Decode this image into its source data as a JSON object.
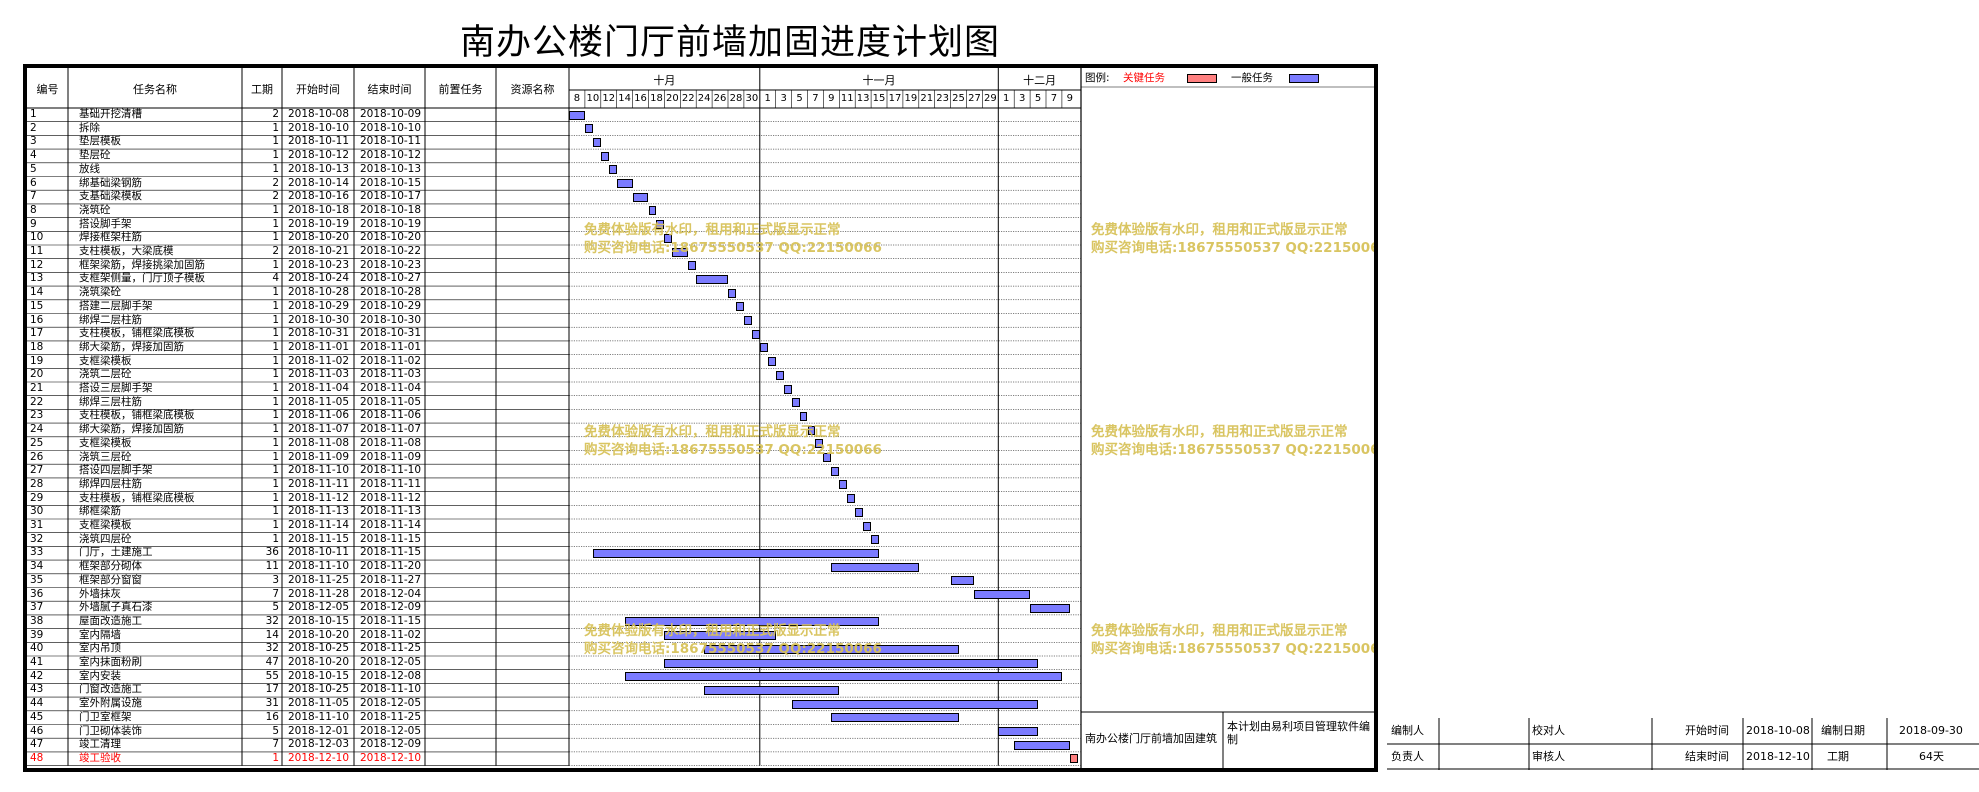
{
  "title": "南办公楼门厅前墙加固进度计划图",
  "columns": {
    "id": "编号",
    "name": "任务名称",
    "dur": "工期",
    "start": "开始时间",
    "end": "结束时间",
    "pred": "前置任务",
    "res": "资源名称"
  },
  "months": [
    "十月",
    "十一月",
    "十二月"
  ],
  "days": [
    "8",
    "10",
    "12",
    "14",
    "16",
    "18",
    "20",
    "22",
    "24",
    "26",
    "28",
    "30",
    "1",
    "3",
    "5",
    "7",
    "9",
    "11",
    "13",
    "15",
    "17",
    "19",
    "21",
    "23",
    "25",
    "27",
    "29",
    "1",
    "3",
    "5",
    "7",
    "9"
  ],
  "legend": {
    "label": "图例:",
    "critical": "关键任务",
    "normal": "一般任务"
  },
  "colors": {
    "critical": "#ff8080",
    "normal": "#7b7bff",
    "watermark": "#d8c25a",
    "critical_text": "#ff0000"
  },
  "tasks": [
    {
      "id": "1",
      "name": "基础开挖清槽",
      "dur": "2",
      "start": "2018-10-08",
      "end": "2018-10-09"
    },
    {
      "id": "2",
      "name": "拆除",
      "dur": "1",
      "start": "2018-10-10",
      "end": "2018-10-10"
    },
    {
      "id": "3",
      "name": "垫层模板",
      "dur": "1",
      "start": "2018-10-11",
      "end": "2018-10-11"
    },
    {
      "id": "4",
      "name": "垫层砼",
      "dur": "1",
      "start": "2018-10-12",
      "end": "2018-10-12"
    },
    {
      "id": "5",
      "name": "放线",
      "dur": "1",
      "start": "2018-10-13",
      "end": "2018-10-13"
    },
    {
      "id": "6",
      "name": "绑基础梁钢筋",
      "dur": "2",
      "start": "2018-10-14",
      "end": "2018-10-15"
    },
    {
      "id": "7",
      "name": "支基础梁模板",
      "dur": "2",
      "start": "2018-10-16",
      "end": "2018-10-17"
    },
    {
      "id": "8",
      "name": "浇筑砼",
      "dur": "1",
      "start": "2018-10-18",
      "end": "2018-10-18"
    },
    {
      "id": "9",
      "name": "搭设脚手架",
      "dur": "1",
      "start": "2018-10-19",
      "end": "2018-10-19"
    },
    {
      "id": "10",
      "name": "焊接框架柱筋",
      "dur": "1",
      "start": "2018-10-20",
      "end": "2018-10-20"
    },
    {
      "id": "11",
      "name": "支柱模板，大梁底模",
      "dur": "2",
      "start": "2018-10-21",
      "end": "2018-10-22"
    },
    {
      "id": "12",
      "name": "框架梁筋，焊接挑梁加固筋",
      "dur": "1",
      "start": "2018-10-23",
      "end": "2018-10-23"
    },
    {
      "id": "13",
      "name": "支框架侧量，门厅顶子模板",
      "dur": "4",
      "start": "2018-10-24",
      "end": "2018-10-27"
    },
    {
      "id": "14",
      "name": "浇筑梁砼",
      "dur": "1",
      "start": "2018-10-28",
      "end": "2018-10-28"
    },
    {
      "id": "15",
      "name": "搭建二层脚手架",
      "dur": "1",
      "start": "2018-10-29",
      "end": "2018-10-29"
    },
    {
      "id": "16",
      "name": "绑焊二层柱筋",
      "dur": "1",
      "start": "2018-10-30",
      "end": "2018-10-30"
    },
    {
      "id": "17",
      "name": "支柱模板，铺框梁底模板",
      "dur": "1",
      "start": "2018-10-31",
      "end": "2018-10-31"
    },
    {
      "id": "18",
      "name": "绑大梁筋，焊接加固筋",
      "dur": "1",
      "start": "2018-11-01",
      "end": "2018-11-01"
    },
    {
      "id": "19",
      "name": "支框梁模板",
      "dur": "1",
      "start": "2018-11-02",
      "end": "2018-11-02"
    },
    {
      "id": "20",
      "name": "浇筑二层砼",
      "dur": "1",
      "start": "2018-11-03",
      "end": "2018-11-03"
    },
    {
      "id": "21",
      "name": "搭设三层脚手架",
      "dur": "1",
      "start": "2018-11-04",
      "end": "2018-11-04"
    },
    {
      "id": "22",
      "name": "绑焊三层柱筋",
      "dur": "1",
      "start": "2018-11-05",
      "end": "2018-11-05"
    },
    {
      "id": "23",
      "name": "支柱模板，铺框梁底模板",
      "dur": "1",
      "start": "2018-11-06",
      "end": "2018-11-06"
    },
    {
      "id": "24",
      "name": "绑大梁筋，焊接加固筋",
      "dur": "1",
      "start": "2018-11-07",
      "end": "2018-11-07"
    },
    {
      "id": "25",
      "name": "支框梁模板",
      "dur": "1",
      "start": "2018-11-08",
      "end": "2018-11-08"
    },
    {
      "id": "26",
      "name": "浇筑三层砼",
      "dur": "1",
      "start": "2018-11-09",
      "end": "2018-11-09"
    },
    {
      "id": "27",
      "name": "搭设四层脚手架",
      "dur": "1",
      "start": "2018-11-10",
      "end": "2018-11-10"
    },
    {
      "id": "28",
      "name": "绑焊四层柱筋",
      "dur": "1",
      "start": "2018-11-11",
      "end": "2018-11-11"
    },
    {
      "id": "29",
      "name": "支柱模板，铺框梁底模板",
      "dur": "1",
      "start": "2018-11-12",
      "end": "2018-11-12"
    },
    {
      "id": "30",
      "name": "绑框梁筋",
      "dur": "1",
      "start": "2018-11-13",
      "end": "2018-11-13"
    },
    {
      "id": "31",
      "name": "支框梁模板",
      "dur": "1",
      "start": "2018-11-14",
      "end": "2018-11-14"
    },
    {
      "id": "32",
      "name": "浇筑四层砼",
      "dur": "1",
      "start": "2018-11-15",
      "end": "2018-11-15"
    },
    {
      "id": "33",
      "name": "门厅，土建施工",
      "dur": "36",
      "start": "2018-10-11",
      "end": "2018-11-15"
    },
    {
      "id": "34",
      "name": "框架部分砌体",
      "dur": "11",
      "start": "2018-11-10",
      "end": "2018-11-20"
    },
    {
      "id": "35",
      "name": "框架部分窗窗",
      "dur": "3",
      "start": "2018-11-25",
      "end": "2018-11-27"
    },
    {
      "id": "36",
      "name": "外墙抹灰",
      "dur": "7",
      "start": "2018-11-28",
      "end": "2018-12-04"
    },
    {
      "id": "37",
      "name": "外墙腻子真石漆",
      "dur": "5",
      "start": "2018-12-05",
      "end": "2018-12-09"
    },
    {
      "id": "38",
      "name": "屋面改造施工",
      "dur": "32",
      "start": "2018-10-15",
      "end": "2018-11-15"
    },
    {
      "id": "39",
      "name": "室内隔墙",
      "dur": "14",
      "start": "2018-10-20",
      "end": "2018-11-02"
    },
    {
      "id": "40",
      "name": "室内吊顶",
      "dur": "32",
      "start": "2018-10-25",
      "end": "2018-11-25"
    },
    {
      "id": "41",
      "name": "室内抹面粉刷",
      "dur": "47",
      "start": "2018-10-20",
      "end": "2018-12-05"
    },
    {
      "id": "42",
      "name": "室内安装",
      "dur": "55",
      "start": "2018-10-15",
      "end": "2018-12-08"
    },
    {
      "id": "43",
      "name": "门窗改造施工",
      "dur": "17",
      "start": "2018-10-25",
      "end": "2018-11-10"
    },
    {
      "id": "44",
      "name": "室外附属设施",
      "dur": "31",
      "start": "2018-11-05",
      "end": "2018-12-05"
    },
    {
      "id": "45",
      "name": "门卫室框架",
      "dur": "16",
      "start": "2018-11-10",
      "end": "2018-11-25"
    },
    {
      "id": "46",
      "name": "门卫砌体装饰",
      "dur": "5",
      "start": "2018-12-01",
      "end": "2018-12-05"
    },
    {
      "id": "47",
      "name": "竣工清理",
      "dur": "7",
      "start": "2018-12-03",
      "end": "2018-12-09"
    },
    {
      "id": "48",
      "name": "竣工验收",
      "dur": "1",
      "start": "2018-12-10",
      "end": "2018-12-10",
      "critical": true
    }
  ],
  "watermark": {
    "line1": "免费体验版有水印，租用和正式版显示正常",
    "line2": "购买咨询电话:18675550537 QQ:22150066"
  },
  "project_name": "南办公楼门厅前墙加固建筑",
  "software_note": "本计划由易利项目管理软件编制",
  "footer": {
    "compiler_label": "编制人",
    "checker_label": "校对人",
    "start_label": "开始时间",
    "start_value": "2018-10-08",
    "date_label": "编制日期",
    "date_value": "2018-09-30",
    "owner_label": "负责人",
    "reviewer_label": "审核人",
    "end_label": "结束时间",
    "end_value": "2018-12-10",
    "duration_label": "工期",
    "duration_value": "64天"
  }
}
